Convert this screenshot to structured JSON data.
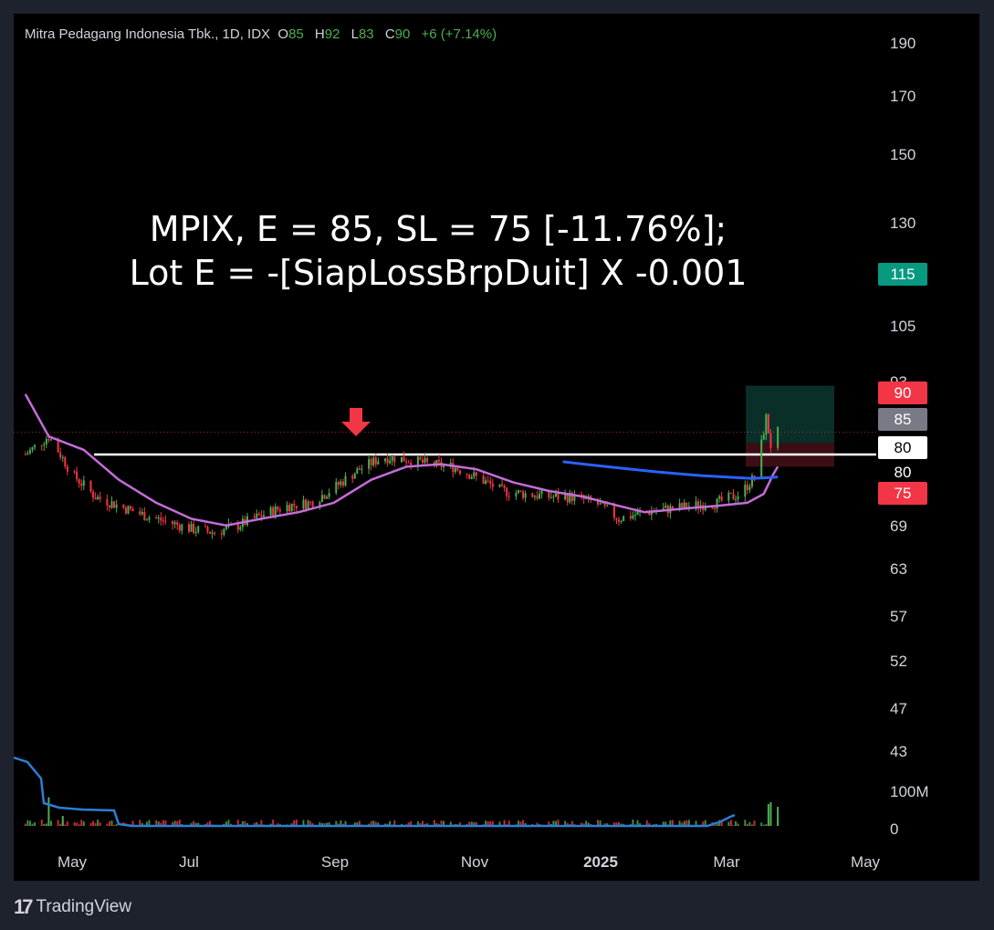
{
  "legend": {
    "title": "Mitra Pedagang Indonesia Tbk., 1D, IDX",
    "o_label": "O",
    "o_value": "85",
    "h_label": "H",
    "h_value": "92",
    "l_label": "L",
    "l_value": "83",
    "c_label": "C",
    "c_value": "90",
    "change": "+6 (+7.14%)"
  },
  "annotation": {
    "line1": "MPIX, E = 85, SL = 75 [-11.76%];",
    "line2": "Lot E = -[SiapLossBrpDuit] X -0.001"
  },
  "price_axis": {
    "ticks": [
      "190",
      "170",
      "150",
      "130",
      "105",
      "93",
      "69",
      "63",
      "57",
      "52",
      "47",
      "43"
    ]
  },
  "volume_axis": {
    "ticks": [
      "100M",
      "0"
    ]
  },
  "price_tags": [
    {
      "label": "115",
      "bg": "#089981",
      "fg": "#ffffff"
    },
    {
      "label": "90",
      "bg": "#f23645",
      "fg": "#ffffff"
    },
    {
      "label": "85",
      "bg": "#787b86",
      "fg": "#ffffff"
    },
    {
      "label": "80",
      "bg": "#ffffff",
      "fg": "#000000"
    },
    {
      "label": "80",
      "bg": "#000000",
      "fg": "#ffffff"
    },
    {
      "label": "75",
      "bg": "#f23645",
      "fg": "#ffffff"
    }
  ],
  "time_axis": {
    "labels": [
      "May",
      "Jul",
      "Sep",
      "Nov",
      "2025",
      "Mar",
      "May"
    ]
  },
  "footer": {
    "logo": "17",
    "brand": "TradingView"
  },
  "colors": {
    "up": "#4caf50",
    "down": "#f23645",
    "ma_short": "#c46dd8",
    "ma_long": "#2962ff",
    "target_zone": "#0a2e28",
    "stop_zone": "#3a0e14"
  },
  "chart_data": {
    "type": "candlestick",
    "symbol": "MPIX",
    "exchange": "IDX",
    "interval": "1D",
    "ylim": [
      41,
      195
    ],
    "y_scale": "log",
    "support_level": 80,
    "position": {
      "entry": 85,
      "stop_loss": 75,
      "target": 115,
      "last_close": 90
    },
    "price_path": [
      {
        "date": "2024-04-15",
        "close": 80
      },
      {
        "date": "2024-04-25",
        "close": 88
      },
      {
        "date": "2024-05-05",
        "close": 72
      },
      {
        "date": "2024-05-15",
        "close": 64
      },
      {
        "date": "2024-05-25",
        "close": 61
      },
      {
        "date": "2024-06-05",
        "close": 58
      },
      {
        "date": "2024-06-15",
        "close": 56
      },
      {
        "date": "2024-06-25",
        "close": 54
      },
      {
        "date": "2024-07-05",
        "close": 53
      },
      {
        "date": "2024-07-15",
        "close": 55
      },
      {
        "date": "2024-07-25",
        "close": 58
      },
      {
        "date": "2024-08-05",
        "close": 61
      },
      {
        "date": "2024-08-15",
        "close": 62
      },
      {
        "date": "2024-08-25",
        "close": 67
      },
      {
        "date": "2024-09-05",
        "close": 74
      },
      {
        "date": "2024-09-15",
        "close": 79
      },
      {
        "date": "2024-09-25",
        "close": 78
      },
      {
        "date": "2024-10-05",
        "close": 76
      },
      {
        "date": "2024-10-15",
        "close": 75
      },
      {
        "date": "2024-10-25",
        "close": 71
      },
      {
        "date": "2024-11-05",
        "close": 66
      },
      {
        "date": "2024-11-15",
        "close": 65
      },
      {
        "date": "2024-11-25",
        "close": 64
      },
      {
        "date": "2024-12-05",
        "close": 64
      },
      {
        "date": "2024-12-15",
        "close": 62
      },
      {
        "date": "2024-12-25",
        "close": 57
      },
      {
        "date": "2025-01-05",
        "close": 59
      },
      {
        "date": "2025-01-15",
        "close": 60
      },
      {
        "date": "2025-01-25",
        "close": 61
      },
      {
        "date": "2025-02-05",
        "close": 62
      },
      {
        "date": "2025-02-15",
        "close": 65
      },
      {
        "date": "2025-02-22",
        "close": 72
      },
      {
        "date": "2025-02-26",
        "close": 97
      },
      {
        "date": "2025-02-28",
        "close": 84
      },
      {
        "date": "2025-03-03",
        "close": 90
      }
    ],
    "ma_short": [
      {
        "date": "2024-04-15",
        "value": 110
      },
      {
        "date": "2024-04-25",
        "value": 88
      },
      {
        "date": "2024-05-10",
        "value": 82
      },
      {
        "date": "2024-05-25",
        "value": 70
      },
      {
        "date": "2024-06-10",
        "value": 62
      },
      {
        "date": "2024-06-25",
        "value": 57
      },
      {
        "date": "2024-07-10",
        "value": 55
      },
      {
        "date": "2024-07-25",
        "value": 57
      },
      {
        "date": "2024-08-10",
        "value": 59
      },
      {
        "date": "2024-08-25",
        "value": 62
      },
      {
        "date": "2024-09-10",
        "value": 70
      },
      {
        "date": "2024-09-25",
        "value": 75
      },
      {
        "date": "2024-10-10",
        "value": 76
      },
      {
        "date": "2024-10-25",
        "value": 74
      },
      {
        "date": "2024-11-10",
        "value": 69
      },
      {
        "date": "2024-11-25",
        "value": 66
      },
      {
        "date": "2024-12-10",
        "value": 64
      },
      {
        "date": "2024-12-25",
        "value": 61
      },
      {
        "date": "2025-01-05",
        "value": 59
      },
      {
        "date": "2025-01-20",
        "value": 60
      },
      {
        "date": "2025-02-05",
        "value": 61
      },
      {
        "date": "2025-02-18",
        "value": 62
      },
      {
        "date": "2025-02-25",
        "value": 65
      },
      {
        "date": "2025-03-01",
        "value": 72
      },
      {
        "date": "2025-03-03",
        "value": 75
      }
    ],
    "ma_long": [
      {
        "date": "2024-12-01",
        "value": 77
      },
      {
        "date": "2024-12-20",
        "value": 75
      },
      {
        "date": "2025-01-10",
        "value": 73
      },
      {
        "date": "2025-01-30",
        "value": 71.5
      },
      {
        "date": "2025-02-20",
        "value": 70.5
      },
      {
        "date": "2025-03-03",
        "value": 71
      }
    ],
    "volume": [
      {
        "date": "2024-04-25",
        "value": 63
      },
      {
        "date": "2024-05-01",
        "value": 22
      },
      {
        "date": "2025-02-27",
        "value": 48
      },
      {
        "date": "2025-02-28",
        "value": 52
      },
      {
        "date": "2025-03-03",
        "value": 42
      }
    ]
  }
}
